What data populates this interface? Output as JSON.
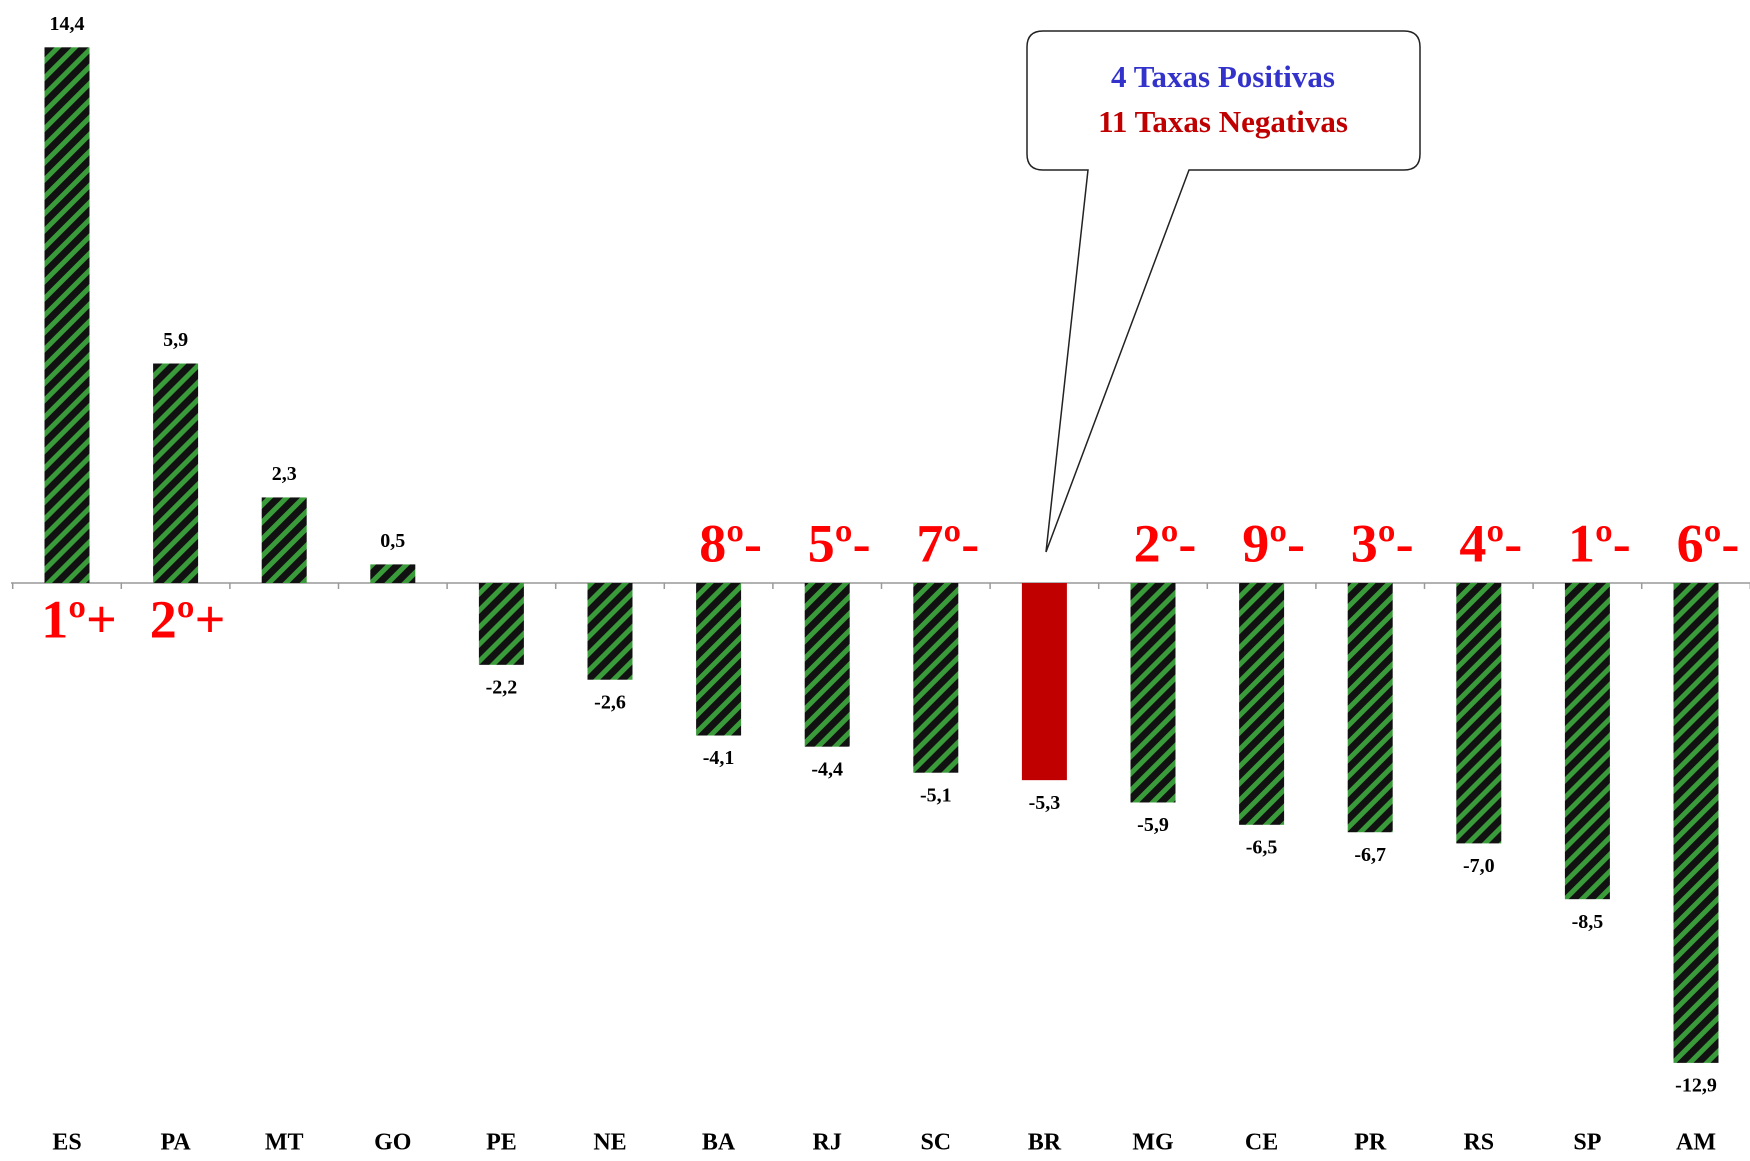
{
  "chart_data": {
    "type": "bar",
    "categories": [
      "ES",
      "PA",
      "MT",
      "GO",
      "PE",
      "NE",
      "BA",
      "RJ",
      "SC",
      "BR",
      "MG",
      "CE",
      "PR",
      "RS",
      "SP",
      "AM"
    ],
    "values": [
      14.4,
      5.9,
      2.3,
      0.5,
      -2.2,
      -2.6,
      -4.1,
      -4.4,
      -5.1,
      -5.3,
      -5.9,
      -6.5,
      -6.7,
      -7.0,
      -8.5,
      -12.9
    ],
    "value_labels": [
      "14,4",
      "5,9",
      "2,3",
      "0,5",
      "-2,2",
      "-2,6",
      "-4,1",
      "-4,4",
      "-5,1",
      "-5,3",
      "-5,9",
      "-6,5",
      "-6,7",
      "-7,0",
      "-8,5",
      "-12,9"
    ],
    "colors": [
      "#3a9b3a",
      "#3a9b3a",
      "#3a9b3a",
      "#3a9b3a",
      "#3a9b3a",
      "#3a9b3a",
      "#3a9b3a",
      "#3a9b3a",
      "#3a9b3a",
      "#c00000",
      "#3a9b3a",
      "#3a9b3a",
      "#3a9b3a",
      "#3a9b3a",
      "#3a9b3a",
      "#3a9b3a"
    ],
    "patterns": [
      "hatch",
      "hatch",
      "hatch",
      "hatch",
      "hatch",
      "hatch",
      "hatch",
      "hatch",
      "hatch",
      "solid",
      "hatch",
      "hatch",
      "hatch",
      "hatch",
      "hatch",
      "hatch"
    ],
    "rank_labels": [
      "1º+",
      "2º+",
      null,
      null,
      null,
      null,
      "8º-",
      "5º-",
      "7º-",
      null,
      "2º-",
      "9º-",
      "3º-",
      "4º-",
      "1º-",
      "6º-"
    ],
    "callout": {
      "lines": [
        {
          "text": "4 Taxas Positivas",
          "color": "#3333cc"
        },
        {
          "text": "11 Taxas Negativas",
          "color": "#c00000"
        }
      ]
    }
  }
}
